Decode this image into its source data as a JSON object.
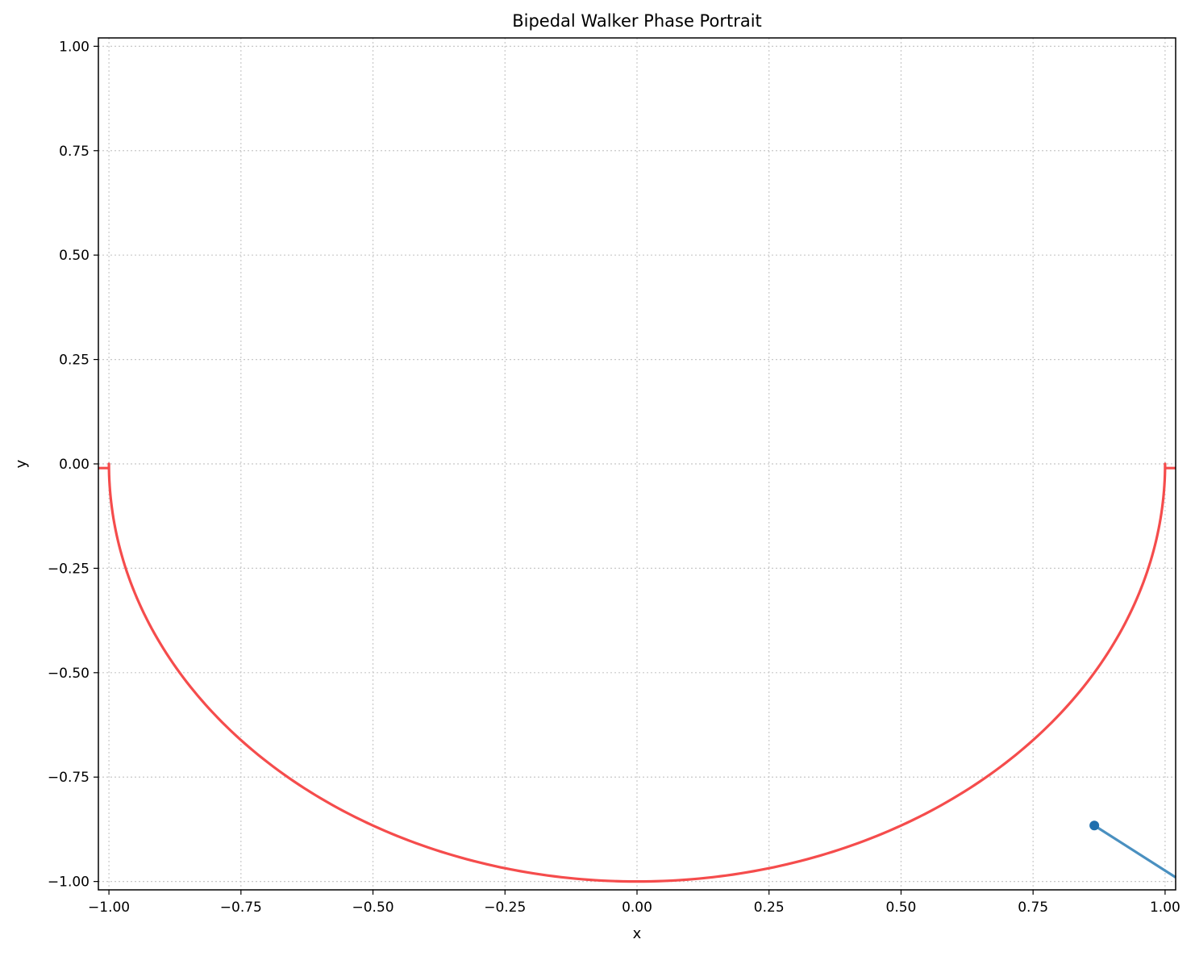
{
  "chart_data": {
    "type": "line",
    "title": "Bipedal Walker Phase Portrait",
    "xlabel": "x",
    "ylabel": "y",
    "xlim": [
      -1.02,
      1.02
    ],
    "ylim": [
      -1.02,
      1.02
    ],
    "grid": true,
    "grid_style": "dotted",
    "x_ticks": [
      -1.0,
      -0.75,
      -0.5,
      -0.25,
      0.0,
      0.25,
      0.5,
      0.75,
      1.0
    ],
    "x_tick_labels": [
      "−1.00",
      "−0.75",
      "−0.50",
      "−0.25",
      "0.00",
      "0.25",
      "0.50",
      "0.75",
      "1.00"
    ],
    "y_ticks": [
      1.0,
      0.75,
      0.5,
      0.25,
      0.0,
      -0.25,
      -0.5,
      -0.75,
      -1.0
    ],
    "y_tick_labels": [
      "1.00",
      "0.75",
      "0.50",
      "0.25",
      "0.00",
      "−0.25",
      "−0.50",
      "−0.75",
      "−1.00"
    ],
    "series": [
      {
        "kind": "semicircle",
        "color": "#f54c4c",
        "description_points": {
          "center": [
            0,
            0
          ],
          "radius": 1.0,
          "flat_ends_y": -0.01,
          "flat_end_left_x": [
            -1.02,
            -1.0
          ],
          "flat_end_right_x": [
            1.0,
            1.02
          ]
        }
      },
      {
        "kind": "segment",
        "color": "#4a90c0",
        "marker_color": "#1f6fae",
        "x": [
          0.866,
          1.02
        ],
        "y": [
          -0.866,
          -0.99
        ],
        "marker_at": [
          0.866,
          -0.866
        ]
      }
    ]
  }
}
